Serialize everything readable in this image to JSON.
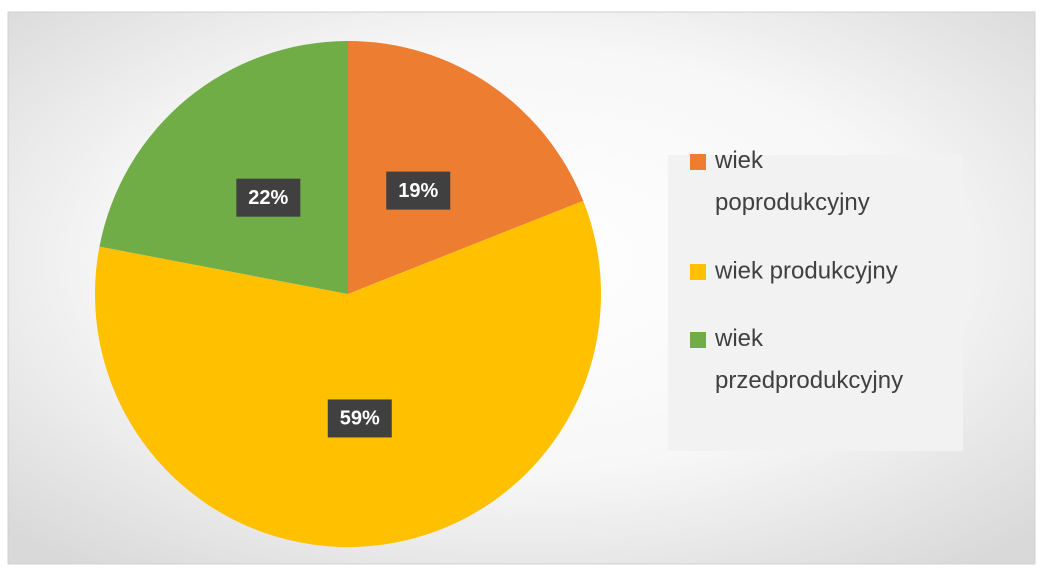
{
  "chart_data": {
    "type": "pie",
    "series": [
      {
        "name": "wiek poprodukcyjny",
        "color": "#ED7D31"
      },
      {
        "name": "wiek produkcyjny",
        "color": "#FFC000"
      },
      {
        "name": "wiek przedprodukcyjny",
        "color": "#70AD47"
      }
    ],
    "categories": [
      "wiek poprodukcyjny",
      "wiek produkcyjny",
      "wiek przedprodukcyjny"
    ],
    "colors": [
      "#ED7D31",
      "#FFC000",
      "#70AD47"
    ],
    "values": [
      19,
      59,
      22
    ],
    "value_labels": [
      "19%",
      "59%",
      "22%"
    ],
    "legend": "right"
  }
}
